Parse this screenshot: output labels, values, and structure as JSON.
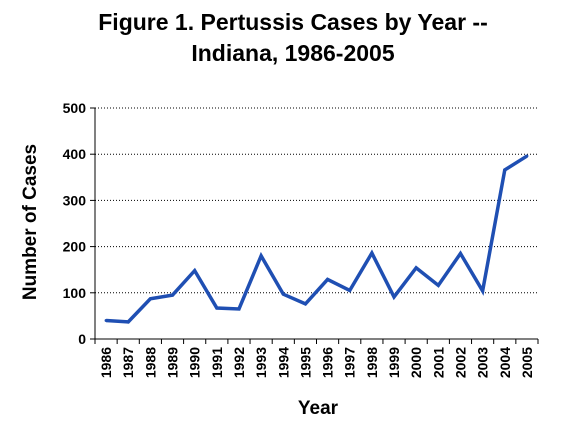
{
  "chart_data": {
    "type": "line",
    "title_line1": "Figure 1. Pertussis Cases by Year --",
    "title_line2": "Indiana, 1986-2005",
    "xlabel": "Year",
    "ylabel": "Number of Cases",
    "ylim": [
      0,
      500
    ],
    "yticks": [
      "0",
      "100",
      "200",
      "300",
      "400",
      "500"
    ],
    "grid": "horizontal dotted",
    "categories": [
      "1986",
      "1987",
      "1988",
      "1989",
      "1990",
      "1991",
      "1992",
      "1993",
      "1994",
      "1995",
      "1996",
      "1997",
      "1998",
      "1999",
      "2000",
      "2001",
      "2002",
      "2003",
      "2004",
      "2005"
    ],
    "series": [
      {
        "values": [
          40,
          37,
          87,
          95,
          148,
          67,
          65,
          180,
          97,
          76,
          129,
          105,
          186,
          91,
          154,
          116,
          185,
          104,
          366,
          396
        ],
        "color": "#1f4fb3"
      }
    ]
  }
}
